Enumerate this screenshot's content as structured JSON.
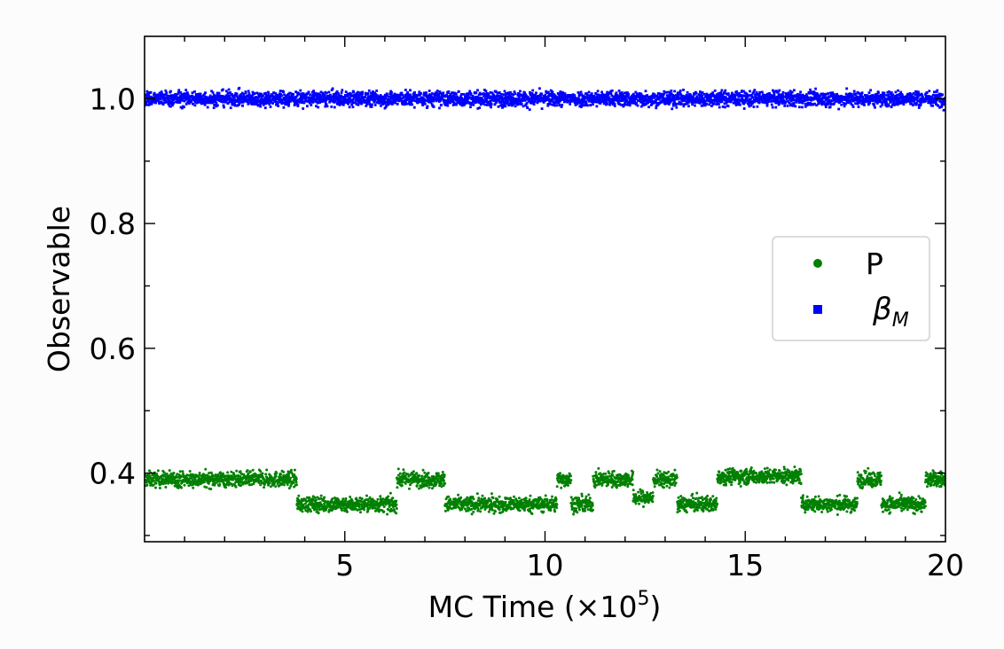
{
  "chart_data": {
    "type": "scatter",
    "title": "",
    "xlabel": "MC Time (×10⁵)",
    "xlabel_parts": {
      "text": "MC Time (×10",
      "sup": "5",
      "close": ")"
    },
    "ylabel": "Observable",
    "xlim": [
      0,
      20
    ],
    "ylim": [
      0.29,
      1.1
    ],
    "x_ticks": [
      5,
      10,
      15,
      20
    ],
    "x_tick_labels": [
      "5",
      "10",
      "15",
      "20"
    ],
    "x_minor_step": 1,
    "y_ticks": [
      0.4,
      0.6,
      0.8,
      1.0
    ],
    "y_tick_labels": [
      "0.4",
      "0.6",
      "0.8",
      "1.0"
    ],
    "y_minor_step": 0.1,
    "grid": false,
    "legend": {
      "position": "right",
      "entries": [
        "P",
        "β_M"
      ]
    },
    "series": [
      {
        "name": "P",
        "marker": "circle",
        "color": "#008000",
        "noise": 0.012,
        "segments": [
          {
            "x": [
              0.0,
              3.8
            ],
            "y": 0.39
          },
          {
            "x": [
              3.8,
              6.3
            ],
            "y": 0.35
          },
          {
            "x": [
              6.3,
              7.5
            ],
            "y": 0.39
          },
          {
            "x": [
              7.5,
              10.3
            ],
            "y": 0.35
          },
          {
            "x": [
              10.3,
              10.65
            ],
            "y": 0.39
          },
          {
            "x": [
              10.65,
              11.2
            ],
            "y": 0.35
          },
          {
            "x": [
              11.2,
              12.2
            ],
            "y": 0.39
          },
          {
            "x": [
              12.2,
              12.7
            ],
            "y": 0.36
          },
          {
            "x": [
              12.7,
              13.3
            ],
            "y": 0.39
          },
          {
            "x": [
              13.3,
              14.3
            ],
            "y": 0.35
          },
          {
            "x": [
              14.3,
              16.4
            ],
            "y": 0.395
          },
          {
            "x": [
              16.4,
              17.8
            ],
            "y": 0.35
          },
          {
            "x": [
              17.8,
              18.4
            ],
            "y": 0.39
          },
          {
            "x": [
              18.4,
              19.5
            ],
            "y": 0.35
          },
          {
            "x": [
              19.5,
              20.0
            ],
            "y": 0.39
          }
        ]
      },
      {
        "name": "β_M",
        "marker": "square",
        "color": "#0000ff",
        "noise": 0.012,
        "segments": [
          {
            "x": [
              0.0,
              20.0
            ],
            "y": 1.0
          }
        ]
      }
    ]
  }
}
